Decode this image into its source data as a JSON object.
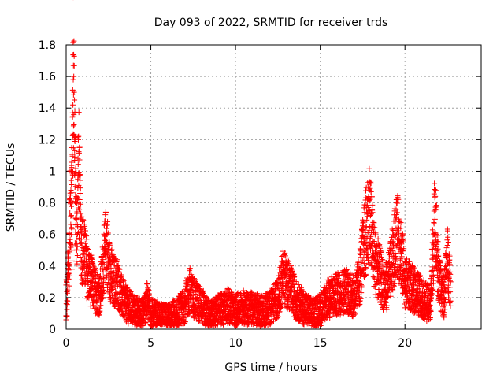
{
  "chart_data": {
    "type": "scatter",
    "title": "Day 093 of 2022, SRMTID for receiver trds",
    "xlabel": "GPS time / hours",
    "ylabel": "SRMTID / TECUs",
    "xlim": [
      0,
      24.5
    ],
    "ylim": [
      0,
      1.8
    ],
    "xticks": [
      0,
      5,
      10,
      15,
      20
    ],
    "yticks": [
      0,
      0.2,
      0.4,
      0.6,
      0.8,
      1,
      1.2,
      1.4,
      1.6,
      1.8
    ],
    "ytick_labels": [
      "0",
      "0.2",
      "0.4",
      "0.6",
      "0.8",
      "1",
      "1.2",
      "1.4",
      "1.6",
      "1.8"
    ],
    "grid": true,
    "marker": "+",
    "color": "#ff0000",
    "sampling_interval_hours": 0.01,
    "series": [
      {
        "name": "SRMTID",
        "points": [
          [
            0.0,
            0.06
          ],
          [
            0.0,
            0.28
          ],
          [
            0.05,
            0.18
          ],
          [
            0.1,
            0.36
          ],
          [
            0.15,
            0.42
          ],
          [
            0.2,
            0.55
          ],
          [
            0.25,
            0.8
          ],
          [
            0.28,
            0.88
          ],
          [
            0.3,
            0.72
          ],
          [
            0.33,
            1.0
          ],
          [
            0.35,
            0.5
          ],
          [
            0.38,
            1.37
          ],
          [
            0.4,
            1.42
          ],
          [
            0.42,
            1.58
          ],
          [
            0.43,
            1.67
          ],
          [
            0.45,
            1.6
          ],
          [
            0.47,
            1.5
          ],
          [
            0.5,
            1.13
          ],
          [
            0.52,
            0.9
          ],
          [
            0.55,
            0.85
          ],
          [
            0.6,
            0.7
          ],
          [
            0.65,
            0.6
          ],
          [
            0.7,
            0.97
          ],
          [
            0.75,
            0.99
          ],
          [
            0.8,
            0.82
          ],
          [
            0.85,
            0.65
          ],
          [
            0.9,
            0.55
          ],
          [
            1.0,
            0.5
          ],
          [
            1.1,
            0.45
          ],
          [
            1.2,
            0.4
          ],
          [
            1.3,
            0.35
          ],
          [
            1.5,
            0.3
          ],
          [
            1.7,
            0.25
          ],
          [
            2.0,
            0.22
          ],
          [
            2.3,
            0.5
          ],
          [
            2.4,
            0.55
          ],
          [
            2.5,
            0.4
          ],
          [
            2.8,
            0.3
          ],
          [
            3.0,
            0.3
          ],
          [
            3.3,
            0.2
          ],
          [
            3.6,
            0.15
          ],
          [
            4.0,
            0.12
          ],
          [
            4.5,
            0.1
          ],
          [
            4.8,
            0.18
          ],
          [
            5.0,
            0.1
          ],
          [
            5.5,
            0.08
          ],
          [
            6.0,
            0.07
          ],
          [
            6.5,
            0.1
          ],
          [
            7.0,
            0.15
          ],
          [
            7.3,
            0.25
          ],
          [
            7.5,
            0.2
          ],
          [
            8.0,
            0.15
          ],
          [
            8.5,
            0.08
          ],
          [
            9.0,
            0.12
          ],
          [
            9.5,
            0.15
          ],
          [
            10.0,
            0.12
          ],
          [
            10.5,
            0.14
          ],
          [
            11.0,
            0.13
          ],
          [
            11.5,
            0.12
          ],
          [
            12.0,
            0.13
          ],
          [
            12.5,
            0.2
          ],
          [
            12.8,
            0.35
          ],
          [
            13.0,
            0.3
          ],
          [
            13.3,
            0.25
          ],
          [
            13.6,
            0.18
          ],
          [
            14.0,
            0.14
          ],
          [
            14.5,
            0.1
          ],
          [
            15.0,
            0.12
          ],
          [
            15.3,
            0.18
          ],
          [
            15.6,
            0.2
          ],
          [
            16.0,
            0.22
          ],
          [
            16.5,
            0.25
          ],
          [
            17.0,
            0.2
          ],
          [
            17.3,
            0.3
          ],
          [
            17.6,
            0.55
          ],
          [
            17.9,
            0.75
          ],
          [
            18.0,
            0.65
          ],
          [
            18.2,
            0.45
          ],
          [
            18.5,
            0.35
          ],
          [
            18.8,
            0.25
          ],
          [
            19.0,
            0.3
          ],
          [
            19.3,
            0.45
          ],
          [
            19.5,
            0.6
          ],
          [
            19.7,
            0.55
          ],
          [
            20.0,
            0.3
          ],
          [
            20.5,
            0.25
          ],
          [
            21.0,
            0.2
          ],
          [
            21.5,
            0.15
          ],
          [
            21.8,
            0.78
          ],
          [
            21.85,
            0.6
          ],
          [
            21.9,
            0.45
          ],
          [
            22.0,
            0.3
          ],
          [
            22.3,
            0.2
          ],
          [
            22.5,
            0.45
          ],
          [
            22.7,
            0.3
          ]
        ]
      }
    ]
  }
}
